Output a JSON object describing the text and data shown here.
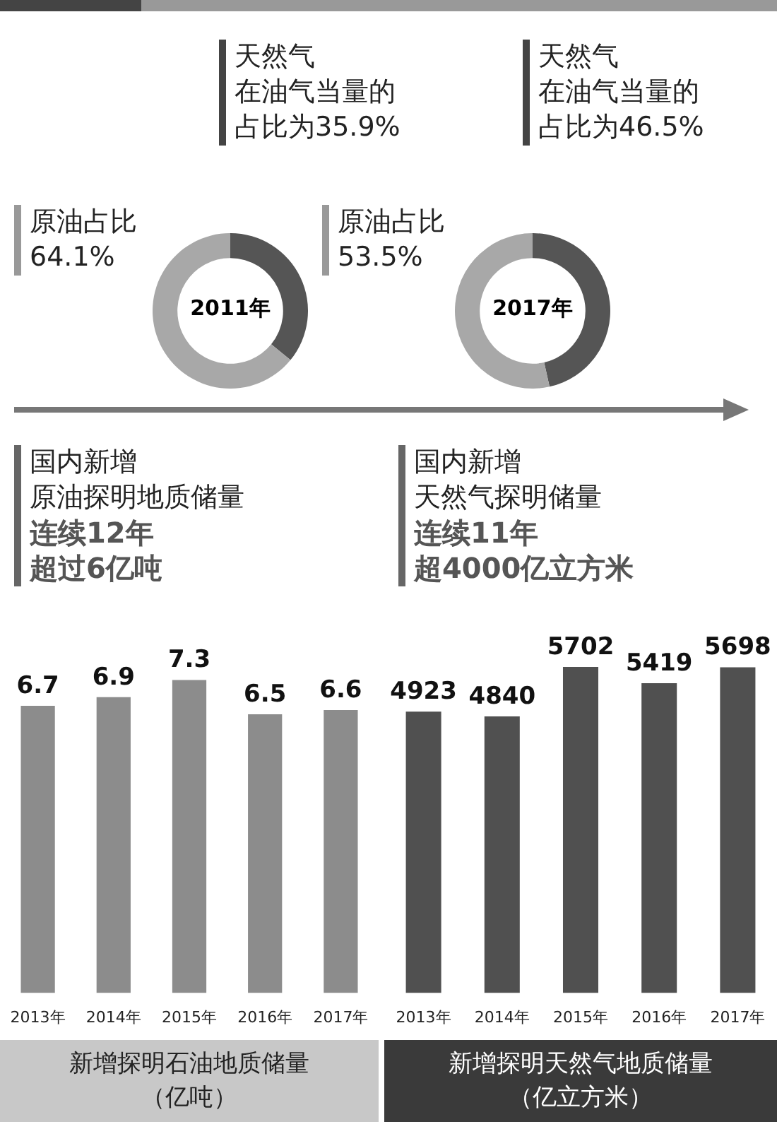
{
  "chart_data": [
    {
      "type": "donut",
      "title": "2011年",
      "categories": [
        null,
        null
      ],
      "values": [
        35.9,
        64.1
      ],
      "colors": [
        "#555555",
        "#a8a8a8"
      ],
      "annotations": [
        "天然气",
        "在油气当量的",
        "占比为35.9%",
        "原油占比",
        "64.1%"
      ]
    },
    {
      "type": "donut",
      "title": "2017年",
      "categories": [
        null,
        null
      ],
      "values": [
        46.5,
        53.5
      ],
      "colors": [
        "#555555",
        "#a8a8a8"
      ],
      "annotations": [
        "天然气",
        "在油气当量的",
        "占比为46.5%",
        "原油占比",
        "53.5%"
      ]
    },
    {
      "type": "bar",
      "title": "新增探明石油地质储量（亿吨）",
      "categories": [
        "2013年",
        "2014年",
        "2015年",
        "2016年",
        "2017年"
      ],
      "values": [
        6.7,
        6.9,
        7.3,
        6.5,
        6.6
      ],
      "color": "#8c8c8c",
      "data_labels": true,
      "annotations": [
        "国内新增",
        "原油探明地质储量",
        "连续12年",
        "超过6亿吨"
      ]
    },
    {
      "type": "bar",
      "title": "新增探明天然气地质储量（亿立方米）",
      "categories": [
        "2013年",
        "2014年",
        "2015年",
        "2016年",
        "2017年"
      ],
      "values": [
        4923,
        4840,
        5702,
        5419,
        5698
      ],
      "color": "#505050",
      "data_labels": true,
      "annotations": [
        "国内新增",
        "天然气探明储量",
        "连续11年",
        "超4000亿立方米"
      ]
    }
  ]
}
